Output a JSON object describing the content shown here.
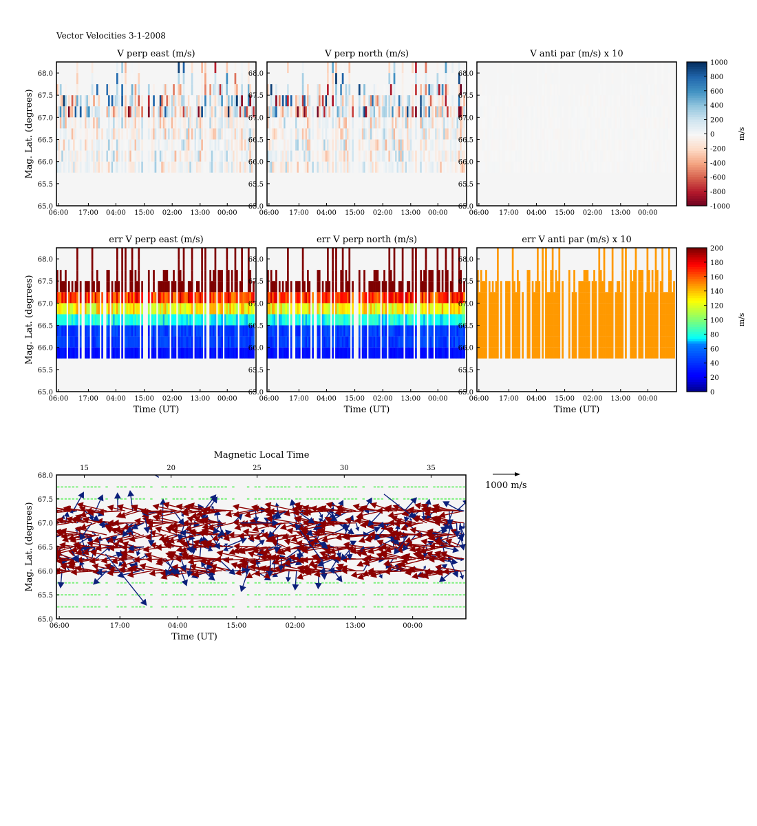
{
  "figure_title": "Vector Velocities 3-1-2008",
  "colors": {
    "panel_bg": "#f5f5f5",
    "vel_red": "#8b0000",
    "vel_blue": "#0b1f7a",
    "missing_green": "#7cf07c",
    "err_par_orange": "#ff9900"
  },
  "chart_data": [
    {
      "id": "v-perp-east",
      "type": "heatmap",
      "title": "V perp east (m/s)",
      "ylabel": "Mag. Lat. (degrees)",
      "xlabel": "",
      "xticks": [
        "06:00",
        "17:00",
        "04:00",
        "15:00",
        "02:00",
        "13:00",
        "00:00"
      ],
      "yticks": [
        "65.0",
        "65.5",
        "66.0",
        "66.5",
        "67.0",
        "67.5",
        "68.0"
      ],
      "ylim": [
        65.0,
        68.25
      ],
      "colormap": "RdBu",
      "clim": [
        -1000,
        1000
      ]
    },
    {
      "id": "v-perp-north",
      "type": "heatmap",
      "title": "V perp north (m/s)",
      "xticks": [
        "06:00",
        "17:00",
        "04:00",
        "15:00",
        "02:00",
        "13:00",
        "00:00"
      ],
      "ylim": [
        65.0,
        68.25
      ],
      "colormap": "RdBu",
      "clim": [
        -1000,
        1000
      ]
    },
    {
      "id": "v-anti-par",
      "type": "heatmap",
      "title": "V anti par (m/s) x 10",
      "xticks": [
        "06:00",
        "17:00",
        "04:00",
        "15:00",
        "02:00",
        "13:00",
        "00:00"
      ],
      "ylim": [
        65.0,
        68.25
      ],
      "colormap": "RdBu",
      "clim": [
        -1000,
        1000
      ]
    },
    {
      "id": "colorbar-velocity",
      "type": "colorbar",
      "label": "m/s",
      "ticks": [
        "1000",
        "800",
        "600",
        "400",
        "200",
        "0",
        "-200",
        "-400",
        "-600",
        "-800",
        "-1000"
      ],
      "range": [
        -1000,
        1000
      ]
    },
    {
      "id": "err-v-perp-east",
      "type": "heatmap",
      "title": "err V perp east (m/s)",
      "ylabel": "Mag. Lat. (degrees)",
      "xlabel": "Time (UT)",
      "xticks": [
        "06:00",
        "17:00",
        "04:00",
        "15:00",
        "02:00",
        "13:00",
        "00:00"
      ],
      "yticks": [
        "65.0",
        "65.5",
        "66.0",
        "66.5",
        "67.0",
        "67.5",
        "68.0"
      ],
      "ylim": [
        65.0,
        68.25
      ],
      "colormap": "jet",
      "clim": [
        0,
        200
      ]
    },
    {
      "id": "err-v-perp-north",
      "type": "heatmap",
      "title": "err V perp north (m/s)",
      "xlabel": "Time (UT)",
      "xticks": [
        "06:00",
        "17:00",
        "04:00",
        "15:00",
        "02:00",
        "13:00",
        "00:00"
      ],
      "ylim": [
        65.0,
        68.25
      ],
      "colormap": "jet",
      "clim": [
        0,
        200
      ]
    },
    {
      "id": "err-v-anti-par",
      "type": "heatmap",
      "title": "err V anti par (m/s) x 10",
      "xlabel": "Time (UT)",
      "xticks": [
        "06:00",
        "17:00",
        "04:00",
        "15:00",
        "02:00",
        "13:00",
        "00:00"
      ],
      "ylim": [
        65.0,
        68.25
      ],
      "colormap": "jet",
      "clim": [
        0,
        200
      ]
    },
    {
      "id": "colorbar-error",
      "type": "colorbar",
      "label": "m/s",
      "ticks": [
        "200",
        "180",
        "160",
        "140",
        "120",
        "100",
        "80",
        "60",
        "40",
        "20",
        "0"
      ],
      "range": [
        0,
        200
      ]
    },
    {
      "id": "vector-plot",
      "type": "quiver",
      "top_title": "Magnetic Local Time",
      "top_ticks": [
        "15",
        "20",
        "25",
        "30",
        "35"
      ],
      "ylabel": "Mag. Lat. (degrees)",
      "xlabel": "Time (UT)",
      "xticks": [
        "06:00",
        "17:00",
        "04:00",
        "15:00",
        "02:00",
        "13:00",
        "00:00"
      ],
      "yticks": [
        "65.0",
        "65.5",
        "66.0",
        "66.5",
        "67.0",
        "67.5",
        "68.0"
      ],
      "ylim": [
        65.0,
        68.0
      ],
      "scale_label": "1000 m/s",
      "rows_with_vectors": [
        66.0,
        66.25,
        66.5,
        66.75,
        67.0,
        67.25
      ],
      "rows_missing": [
        65.25,
        65.5,
        65.75,
        67.5,
        67.75
      ]
    }
  ]
}
